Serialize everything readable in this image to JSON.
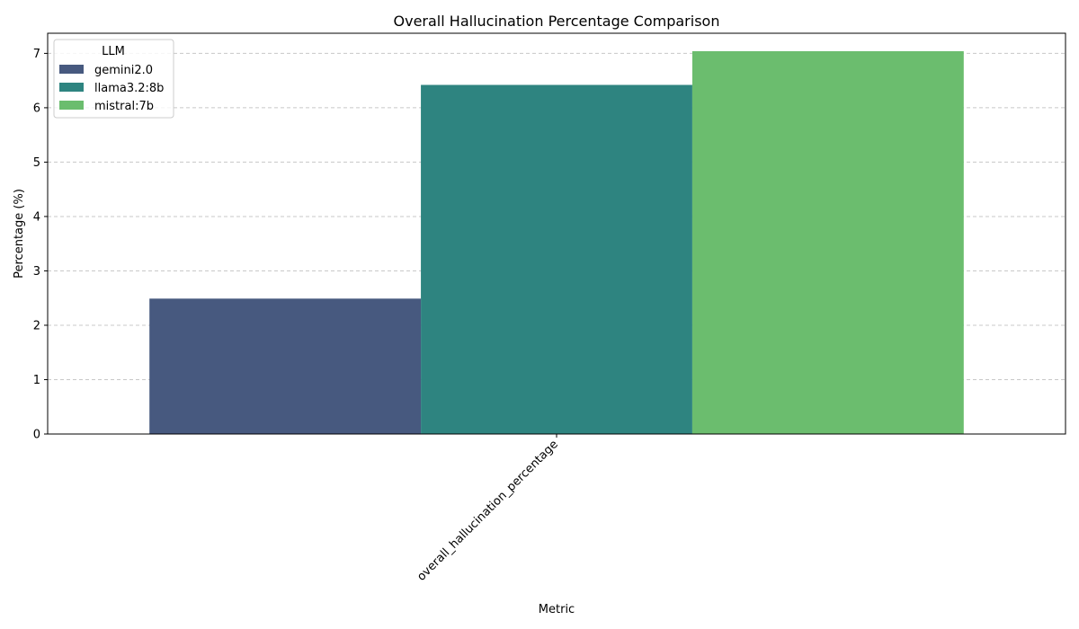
{
  "chart_data": {
    "type": "bar",
    "title": "Overall Hallucination Percentage Comparison",
    "xlabel": "Metric",
    "ylabel": "Percentage (%)",
    "categories": [
      "overall_hallucination_percentage"
    ],
    "series": [
      {
        "name": "gemini2.0",
        "values": [
          2.49
        ],
        "color": "#47597f"
      },
      {
        "name": "llama3.2:8b",
        "values": [
          6.42
        ],
        "color": "#2e8480"
      },
      {
        "name": "mistral:7b",
        "values": [
          7.04
        ],
        "color": "#6bbd6e"
      }
    ],
    "ylim": [
      0,
      7.37
    ],
    "yticks": [
      0,
      1,
      2,
      3,
      4,
      5,
      6,
      7
    ],
    "grid": "y-dashed",
    "legend": {
      "title": "LLM",
      "placement": "top-left"
    }
  }
}
